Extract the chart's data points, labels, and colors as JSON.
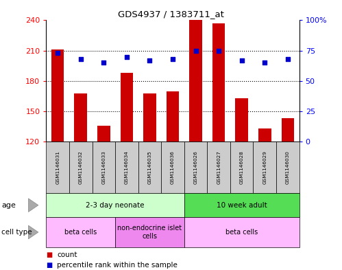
{
  "title": "GDS4937 / 1383711_at",
  "samples": [
    "GSM1146031",
    "GSM1146032",
    "GSM1146033",
    "GSM1146034",
    "GSM1146035",
    "GSM1146036",
    "GSM1146026",
    "GSM1146027",
    "GSM1146028",
    "GSM1146029",
    "GSM1146030"
  ],
  "counts": [
    211,
    168,
    136,
    188,
    168,
    170,
    240,
    237,
    163,
    133,
    143
  ],
  "percentiles": [
    73,
    68,
    65,
    70,
    67,
    68,
    75,
    75,
    67,
    65,
    68
  ],
  "ylim_left": [
    120,
    240
  ],
  "ylim_right": [
    0,
    100
  ],
  "yticks_left": [
    120,
    150,
    180,
    210,
    240
  ],
  "yticks_right": [
    0,
    25,
    50,
    75,
    100
  ],
  "bar_color": "#cc0000",
  "dot_color": "#0000cc",
  "age_groups": [
    {
      "label": "2-3 day neonate",
      "start": 0,
      "end": 6,
      "color": "#ccffcc"
    },
    {
      "label": "10 week adult",
      "start": 6,
      "end": 11,
      "color": "#55dd55"
    }
  ],
  "cell_type_groups": [
    {
      "label": "beta cells",
      "start": 0,
      "end": 3,
      "color": "#ffbbff"
    },
    {
      "label": "non-endocrine islet\ncells",
      "start": 3,
      "end": 6,
      "color": "#ee88ee"
    },
    {
      "label": "beta cells",
      "start": 6,
      "end": 11,
      "color": "#ffbbff"
    }
  ],
  "legend_count_label": "count",
  "legend_percentile_label": "percentile rank within the sample",
  "age_label": "age",
  "cell_type_label": "cell type",
  "sample_box_color": "#cccccc",
  "border_color": "#000000"
}
